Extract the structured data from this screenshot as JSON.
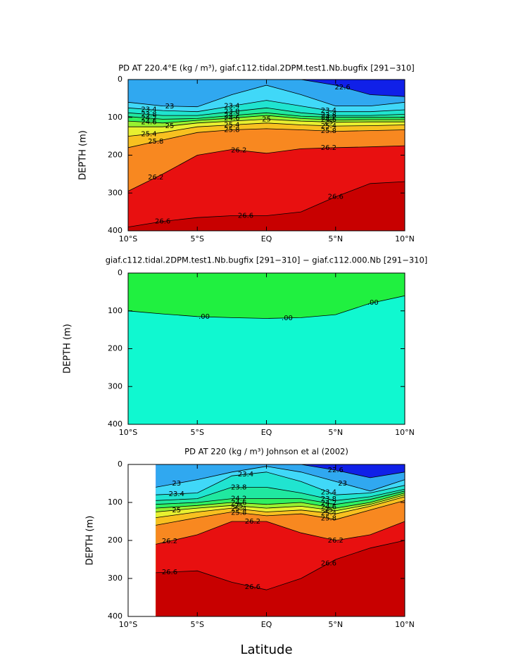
{
  "chart_data": [
    {
      "type": "contour",
      "title": "PD AT 220.4°E (kg / m³), giaf.c112.tidal.2DPM.test1.Nb.bugfix [291−310]",
      "y_label": "DEPTH (m)",
      "color": "#1020e8",
      "xlim": [
        -10,
        10
      ],
      "ylim": [
        400,
        0
      ],
      "xticks": [
        {
          "value": -10,
          "label": "10°S"
        },
        {
          "value": -5,
          "label": "5°S"
        },
        {
          "value": 0,
          "label": "EQ"
        },
        {
          "value": 5,
          "label": "5°N"
        },
        {
          "value": 10,
          "label": "10°N"
        }
      ],
      "yticks": [
        0,
        100,
        200,
        300,
        400
      ],
      "x": [
        -10,
        -7.5,
        -5,
        -2.5,
        0,
        2.5,
        5,
        7.5,
        10
      ],
      "series": [
        {
          "name": "22.6",
          "color": "#30a8f0",
          "values": [
            0,
            0,
            0,
            0,
            0,
            0,
            15,
            40,
            45
          ]
        },
        {
          "name": "23",
          "color": "#40d8f8",
          "values": [
            60,
            70,
            72,
            40,
            15,
            40,
            70,
            70,
            60
          ]
        },
        {
          "name": "23.4",
          "color": "#20e4d0",
          "values": [
            75,
            82,
            85,
            70,
            55,
            70,
            85,
            85,
            80
          ]
        },
        {
          "name": "23.8",
          "color": "#20e8a0",
          "values": [
            88,
            95,
            95,
            85,
            75,
            88,
            95,
            95,
            92
          ]
        },
        {
          "name": "24.2",
          "color": "#30f060",
          "values": [
            98,
            105,
            103,
            95,
            88,
            97,
            100,
            100,
            100
          ]
        },
        {
          "name": "24.6",
          "color": "#98f030",
          "values": [
            110,
            115,
            108,
            102,
            95,
            103,
            107,
            106,
            106
          ]
        },
        {
          "name": "25",
          "color": "#e8f030",
          "values": [
            125,
            125,
            115,
            110,
            105,
            110,
            113,
            112,
            112
          ]
        },
        {
          "name": "25.4",
          "color": "#f8c020",
          "values": [
            150,
            140,
            125,
            120,
            115,
            120,
            123,
            122,
            120
          ]
        },
        {
          "name": "25.8",
          "color": "#f88820",
          "values": [
            180,
            160,
            140,
            133,
            130,
            133,
            137,
            135,
            133
          ]
        },
        {
          "name": "26.2",
          "color": "#e81010",
          "values": [
            295,
            250,
            200,
            185,
            195,
            183,
            180,
            178,
            175
          ]
        },
        {
          "name": "26.6",
          "color": "#c80000",
          "values": [
            390,
            375,
            365,
            360,
            360,
            350,
            310,
            275,
            270
          ]
        }
      ]
    },
    {
      "type": "contour",
      "title": "giaf.c112.tidal.2DPM.test1.Nb.bugfix [291−310] − giaf.c112.000.Nb [291−310]",
      "y_label": "DEPTH (m)",
      "color": "#20f040",
      "xlim": [
        -10,
        10
      ],
      "ylim": [
        400,
        0
      ],
      "xticks": [
        {
          "value": -10,
          "label": "10°S"
        },
        {
          "value": -5,
          "label": "5°S"
        },
        {
          "value": 0,
          "label": "EQ"
        },
        {
          "value": 5,
          "label": "5°N"
        },
        {
          "value": 10,
          "label": "10°N"
        }
      ],
      "yticks": [
        0,
        100,
        200,
        300,
        400
      ],
      "x": [
        -10,
        -7.5,
        -5,
        -2.5,
        0,
        2.5,
        5,
        7.5,
        10
      ],
      "series": [
        {
          "name": ".00",
          "color": "#10f8d0",
          "values": [
            100,
            108,
            115,
            118,
            120,
            118,
            110,
            80,
            60
          ]
        }
      ]
    },
    {
      "type": "contour",
      "title": "PD AT 220 (kg / m³) Johnson et al (2002)",
      "y_label": "DEPTH (m)",
      "x_label": "Latitude",
      "color": "#1020e8",
      "xlim": [
        -10,
        10
      ],
      "ylim": [
        400,
        0
      ],
      "xticks": [
        {
          "value": -10,
          "label": "10°S"
        },
        {
          "value": -5,
          "label": "5°S"
        },
        {
          "value": 0,
          "label": "EQ"
        },
        {
          "value": 5,
          "label": "5°N"
        },
        {
          "value": 10,
          "label": "10°N"
        }
      ],
      "yticks": [
        0,
        100,
        200,
        300,
        400
      ],
      "x": [
        -8,
        -5,
        -2.5,
        0,
        2.5,
        5,
        7.5,
        10
      ],
      "series": [
        {
          "name": "22.6",
          "color": "#30a8f0",
          "values": [
            0,
            0,
            0,
            0,
            0,
            15,
            35,
            20
          ]
        },
        {
          "name": "23",
          "color": "#40d8f8",
          "values": [
            60,
            40,
            20,
            5,
            20,
            45,
            70,
            40
          ]
        },
        {
          "name": "23.4",
          "color": "#20e4d0",
          "values": [
            80,
            75,
            30,
            20,
            45,
            80,
            75,
            55
          ]
        },
        {
          "name": "23.8",
          "color": "#20e8a0",
          "values": [
            95,
            90,
            60,
            60,
            75,
            95,
            85,
            65
          ]
        },
        {
          "name": "24.2",
          "color": "#30f060",
          "values": [
            105,
            100,
            90,
            90,
            90,
            105,
            92,
            70
          ]
        },
        {
          "name": "24.6",
          "color": "#98f030",
          "values": [
            115,
            108,
            100,
            105,
            100,
            115,
            100,
            75
          ]
        },
        {
          "name": "25",
          "color": "#e8f030",
          "values": [
            125,
            115,
            108,
            115,
            110,
            122,
            105,
            80
          ]
        },
        {
          "name": "25.4",
          "color": "#f8c020",
          "values": [
            140,
            125,
            115,
            125,
            120,
            130,
            110,
            85
          ]
        },
        {
          "name": "25.8",
          "color": "#f88820",
          "values": [
            160,
            140,
            125,
            135,
            130,
            145,
            120,
            95
          ]
        },
        {
          "name": "26.2",
          "color": "#e81010",
          "values": [
            210,
            185,
            150,
            150,
            180,
            200,
            185,
            150
          ]
        },
        {
          "name": "26.6",
          "color": "#c80000",
          "values": [
            285,
            280,
            310,
            330,
            300,
            250,
            220,
            200
          ]
        }
      ]
    }
  ]
}
